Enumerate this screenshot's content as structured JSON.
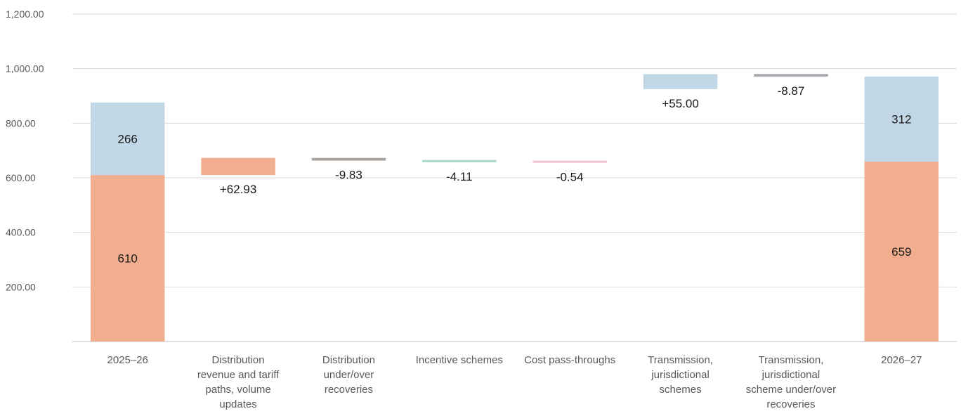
{
  "chart_data": {
    "type": "bar",
    "subtype": "waterfall",
    "title": "",
    "xlabel": "",
    "ylabel": "",
    "ylim": [
      0,
      1200
    ],
    "yticks": [
      "1,200.00",
      "1,000.00",
      "800.00",
      "600.00",
      "400.00",
      "200.00"
    ],
    "ytick_values": [
      1200,
      1000,
      800,
      600,
      400,
      200
    ],
    "grid": true,
    "legend": "none",
    "categories": [
      "2025–26",
      "Distribution revenue and tariff paths, volume updates",
      "Distribution under/over recoveries",
      "Incentive schemes",
      "Cost pass-throughs",
      "Transmission, jurisdictional schemes",
      "Transmission, jurisdictional scheme under/over recoveries",
      "2026–27"
    ],
    "category_lines": [
      [
        "2025–26"
      ],
      [
        "Distribution",
        "revenue and tariff",
        "paths, volume",
        "updates"
      ],
      [
        "Distribution",
        "under/over",
        "recoveries"
      ],
      [
        "Incentive schemes"
      ],
      [
        "Cost pass-throughs"
      ],
      [
        "Transmission,",
        "jurisdictional",
        "schemes"
      ],
      [
        "Transmission,",
        "jurisdictional",
        "scheme under/over",
        "recoveries"
      ],
      [
        "2026–27"
      ]
    ],
    "bars": [
      {
        "kind": "total",
        "segments": [
          {
            "value": 610,
            "label": "610",
            "color": "#f0ae8e"
          },
          {
            "value": 266,
            "label": "266",
            "color": "#c2d7e5"
          }
        ]
      },
      {
        "kind": "delta",
        "start": 610,
        "end": 672.93,
        "change": 62.93,
        "label": "+62.93",
        "color": "#f0ae8e"
      },
      {
        "kind": "delta",
        "start": 672.93,
        "end": 663.1,
        "change": -9.83,
        "label": "-9.83",
        "color": "#a8a39e"
      },
      {
        "kind": "delta",
        "start": 663.1,
        "end": 658.99,
        "change": -4.11,
        "label": "-4.11",
        "color": "#a9d6c7"
      },
      {
        "kind": "delta",
        "start": 658.99,
        "end": 658.45,
        "change": -0.54,
        "label": "-0.54",
        "color": "#f2c6cf"
      },
      {
        "kind": "delta",
        "start": 925,
        "end": 980,
        "change": 55.0,
        "label": "+55.00",
        "color": "#c2d7e5"
      },
      {
        "kind": "delta",
        "start": 980,
        "end": 971.13,
        "change": -8.87,
        "label": "-8.87",
        "color": "#9ea3a8"
      },
      {
        "kind": "total",
        "segments": [
          {
            "value": 659,
            "label": "659",
            "color": "#f0ae8e"
          },
          {
            "value": 312,
            "label": "312",
            "color": "#c2d7e5"
          }
        ]
      }
    ]
  }
}
